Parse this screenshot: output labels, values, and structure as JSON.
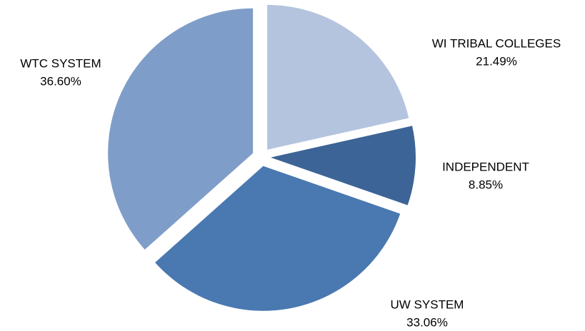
{
  "chart_data": {
    "type": "pie",
    "categories": [
      "WI TRIBAL COLLEGES",
      "INDEPENDENT",
      "UW SYSTEM",
      "WTC SYSTEM"
    ],
    "values": [
      21.49,
      8.85,
      33.06,
      36.6
    ],
    "value_labels": [
      "21.49%",
      "8.85%",
      "33.06%",
      "36.60%"
    ],
    "colors": [
      "#b4c4df",
      "#3c6496",
      "#4a78b0",
      "#7f9dc9"
    ]
  }
}
